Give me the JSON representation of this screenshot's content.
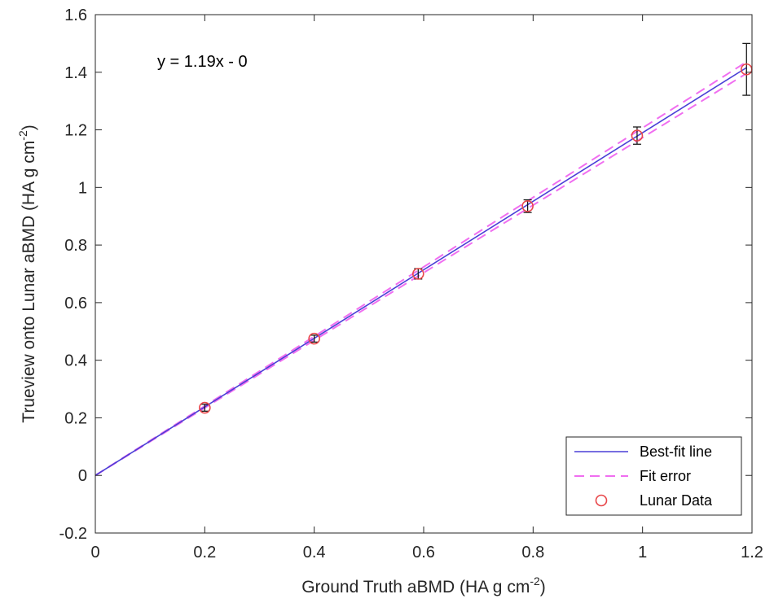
{
  "chart_data": {
    "type": "scatter",
    "xlabel": {
      "text": "Ground Truth aBMD (HA g cm",
      "sup": "-2",
      "suffix": ")"
    },
    "ylabel": {
      "text": "Trueview onto Lunar aBMD (HA g cm",
      "sup": "-2",
      "suffix": ")"
    },
    "xlim": [
      0,
      1.2
    ],
    "ylim": [
      -0.2,
      1.6
    ],
    "xticks": [
      0,
      0.2,
      0.4,
      0.6,
      0.8,
      1,
      1.2
    ],
    "xtick_labels": [
      "0",
      "0.2",
      "0.4",
      "0.6",
      "0.8",
      "1",
      "1.2"
    ],
    "yticks": [
      -0.2,
      0,
      0.2,
      0.4,
      0.6,
      0.8,
      1,
      1.2,
      1.4,
      1.6
    ],
    "ytick_labels": [
      "-0.2",
      "0",
      "0.2",
      "0.4",
      "0.6",
      "0.8",
      "1",
      "1.2",
      "1.4",
      "1.6"
    ],
    "annotation": "y = 1.19x - 0",
    "series": [
      {
        "name": "Best-fit line",
        "kind": "line",
        "color": "#4a3fd6",
        "x": [
          0,
          1.19
        ],
        "y": [
          0,
          1.416
        ]
      },
      {
        "name": "Fit error",
        "kind": "dashed-band",
        "color": "#f06ef0",
        "x": [
          0,
          1.19
        ],
        "y_upper": [
          0,
          1.436
        ],
        "y_lower": [
          0,
          1.396
        ]
      },
      {
        "name": "Lunar Data",
        "kind": "markers",
        "color": "#e8474a",
        "x": [
          0.2,
          0.4,
          0.59,
          0.79,
          0.99,
          1.19
        ],
        "y": [
          0.235,
          0.475,
          0.7,
          0.935,
          1.18,
          1.41
        ],
        "error": [
          0.012,
          0.012,
          0.018,
          0.022,
          0.03,
          0.09
        ]
      }
    ],
    "grid": false,
    "legend_position": "bottom-right"
  }
}
